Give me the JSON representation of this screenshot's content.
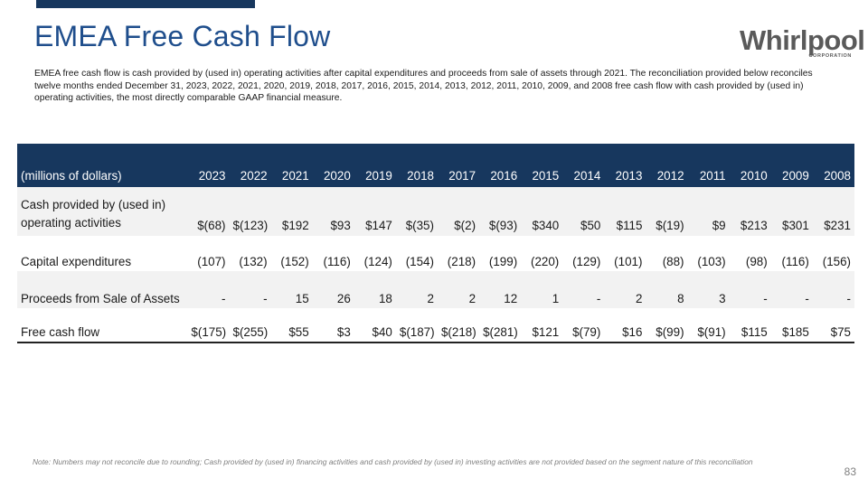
{
  "slide": {
    "title": "EMEA Free Cash Flow",
    "intro": "EMEA free cash flow is cash provided by (used in) operating activities after capital expenditures and proceeds from sale of assets through 2021. The reconciliation provided below reconciles twelve months ended December 31, 2023, 2022, 2021, 2020, 2019, 2018, 2017, 2016, 2015, 2014, 2013, 2012, 2011, 2010, 2009, and 2008 free cash flow with cash provided by (used in) operating activities, the most directly comparable GAAP financial measure.",
    "footnote": "Note: Numbers may not reconcile due to rounding; Cash provided by (used in) financing activities and cash provided by (used in) investing activities are not provided based on the segment nature of this reconciliation",
    "page_number": "83"
  },
  "logo": {
    "wordmark": "Whirlpool",
    "sub": "CORPORATION",
    "color": "#5a5a5a"
  },
  "colors": {
    "header_bg": "#17375e",
    "title": "#1f4e8c",
    "band": "#f2f2f2"
  },
  "table": {
    "headers": [
      "(millions of dollars)",
      "2023",
      "2022",
      "2021",
      "2020",
      "2019",
      "2018",
      "2017",
      "2016",
      "2015",
      "2014",
      "2013",
      "2012",
      "2011",
      "2010",
      "2009",
      "2008"
    ],
    "rows": [
      {
        "label": "Cash provided by (used in) operating activities",
        "values": [
          "$(68)",
          "$(123)",
          "$192",
          "$93",
          "$147",
          "$(35)",
          "$(2)",
          "$(93)",
          "$340",
          "$50",
          "$115",
          "$(19)",
          "$9",
          "$213",
          "$301",
          "$231"
        ]
      },
      {
        "label": "Capital expenditures",
        "values": [
          "(107)",
          "(132)",
          "(152)",
          "(116)",
          "(124)",
          "(154)",
          "(218)",
          "(199)",
          "(220)",
          "(129)",
          "(101)",
          "(88)",
          "(103)",
          "(98)",
          "(116)",
          "(156)"
        ]
      },
      {
        "label": "Proceeds from Sale of Assets",
        "values": [
          "-",
          "-",
          "15",
          "26",
          "18",
          "2",
          "2",
          "12",
          "1",
          "-",
          "2",
          "8",
          "3",
          "-",
          "-",
          "-"
        ]
      },
      {
        "label": "Free cash flow",
        "values": [
          "$(175)",
          "$(255)",
          "$55",
          "$3",
          "$40",
          "$(187)",
          "$(218)",
          "$(281)",
          "$121",
          "$(79)",
          "$16",
          "$(99)",
          "$(91)",
          "$115",
          "$185",
          "$75"
        ]
      }
    ]
  }
}
